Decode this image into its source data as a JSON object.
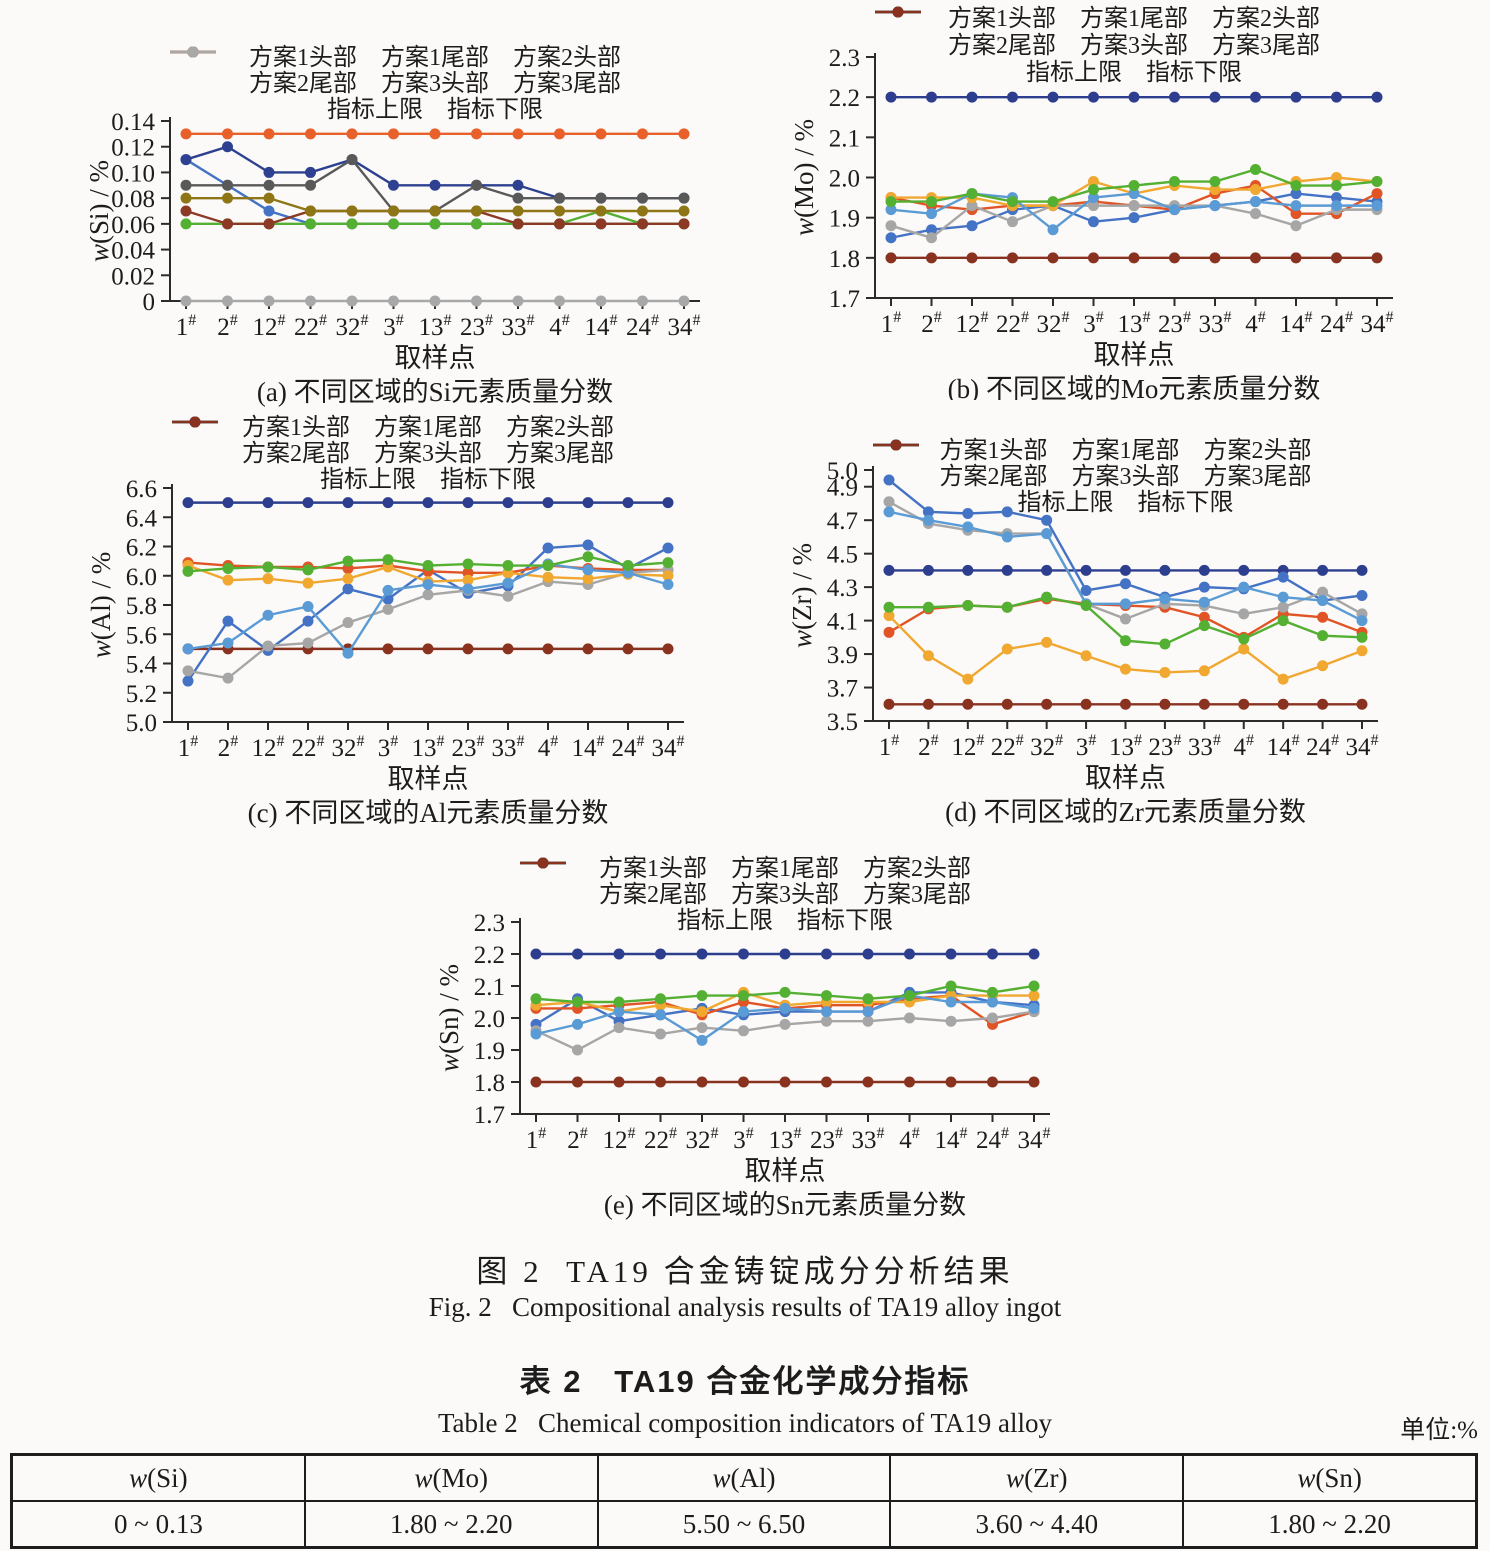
{
  "figure": {
    "caption_zh": "图 2  TA19 合金铸锭成分分析结果",
    "caption_en": "Fig. 2   Compositional analysis results of TA19 alloy ingot"
  },
  "table2": {
    "title_zh": "表 2   TA19 合金化学成分指标",
    "title_en": "Table 2   Chemical composition indicators of TA19 alloy",
    "unit": "单位:%",
    "columns": [
      {
        "symbol": "w",
        "element": "(Si)",
        "range": "0 ~ 0.13"
      },
      {
        "symbol": "w",
        "element": "(Mo)",
        "range": "1.80 ~ 2.20"
      },
      {
        "symbol": "w",
        "element": "(Al)",
        "range": "5.50 ~ 6.50"
      },
      {
        "symbol": "w",
        "element": "(Zr)",
        "range": "3.60 ~ 4.40"
      },
      {
        "symbol": "w",
        "element": "(Sn)",
        "range": "1.80 ~ 2.20"
      }
    ]
  },
  "chart_data": [
    {
      "id": "a",
      "type": "line",
      "title": "(a) 不同区域的Si元素质量分数",
      "xlabel": "取样点",
      "ylabel": "w(Si) / %",
      "ylim": [
        0,
        0.14
      ],
      "yticks": [
        "0",
        "0.02",
        "0.04",
        "0.06",
        "0.08",
        "0.10",
        "0.12",
        "0.14"
      ],
      "grid": false,
      "legend_position": "top",
      "categories": [
        "1#",
        "2#",
        "12#",
        "22#",
        "32#",
        "3#",
        "13#",
        "23#",
        "33#",
        "4#",
        "14#",
        "24#",
        "34#"
      ],
      "series": [
        {
          "name": "方案1头部",
          "color": "#4472c4",
          "values": [
            0.11,
            0.09,
            0.07,
            0.06,
            0.06,
            0.06,
            0.06,
            0.06,
            0.06,
            0.06,
            0.06,
            0.06,
            0.06
          ]
        },
        {
          "name": "方案1尾部",
          "color": "#54b032",
          "values": [
            0.06,
            0.06,
            0.06,
            0.06,
            0.06,
            0.06,
            0.06,
            0.06,
            0.06,
            0.06,
            0.07,
            0.06,
            0.06
          ]
        },
        {
          "name": "方案2头部",
          "color": "#2e4190",
          "values": [
            0.11,
            0.12,
            0.1,
            0.1,
            0.11,
            0.09,
            0.09,
            0.09,
            0.09,
            0.08,
            0.08,
            0.08,
            0.08
          ]
        },
        {
          "name": "方案2尾部",
          "color": "#8c3a26",
          "values": [
            0.07,
            0.06,
            0.06,
            0.07,
            0.07,
            0.07,
            0.07,
            0.07,
            0.06,
            0.06,
            0.06,
            0.06,
            0.06
          ]
        },
        {
          "name": "方案3头部",
          "color": "#595959",
          "values": [
            0.09,
            0.09,
            0.09,
            0.09,
            0.11,
            0.07,
            0.07,
            0.09,
            0.08,
            0.08,
            0.08,
            0.08,
            0.08
          ]
        },
        {
          "name": "方案3尾部",
          "color": "#8e7617",
          "values": [
            0.08,
            0.08,
            0.08,
            0.07,
            0.07,
            0.07,
            0.07,
            0.07,
            0.07,
            0.07,
            0.07,
            0.07,
            0.07
          ]
        },
        {
          "name": "指标上限",
          "color": "#e8612a",
          "values": [
            0.13,
            0.13,
            0.13,
            0.13,
            0.13,
            0.13,
            0.13,
            0.13,
            0.13,
            0.13,
            0.13,
            0.13,
            0.13
          ]
        },
        {
          "name": "指标下限",
          "color": "#a8a8a8",
          "values": [
            0,
            0,
            0,
            0,
            0,
            0,
            0,
            0,
            0,
            0,
            0,
            0,
            0
          ]
        }
      ]
    },
    {
      "id": "b",
      "type": "line",
      "title": "(b) 不同区域的Mo元素质量分数",
      "xlabel": "取样点",
      "ylabel": "w(Mo) / %",
      "ylim": [
        1.7,
        2.3
      ],
      "yticks": [
        "1.7",
        "1.8",
        "1.9",
        "2.0",
        "2.1",
        "2.2",
        "2.3"
      ],
      "grid": false,
      "legend_position": "top",
      "categories": [
        "1#",
        "2#",
        "12#",
        "22#",
        "32#",
        "3#",
        "13#",
        "23#",
        "33#",
        "4#",
        "14#",
        "24#",
        "34#"
      ],
      "series": [
        {
          "name": "方案1头部",
          "color": "#4472c4",
          "values": [
            1.85,
            1.87,
            1.88,
            1.92,
            1.93,
            1.89,
            1.9,
            1.92,
            1.93,
            1.94,
            1.96,
            1.95,
            1.94
          ]
        },
        {
          "name": "方案1尾部",
          "color": "#e05426",
          "values": [
            1.95,
            1.93,
            1.92,
            1.93,
            1.93,
            1.94,
            1.93,
            1.92,
            1.96,
            1.98,
            1.91,
            1.91,
            1.96
          ]
        },
        {
          "name": "方案2头部",
          "color": "#a6a6a6",
          "values": [
            1.88,
            1.85,
            1.93,
            1.89,
            1.93,
            1.93,
            1.93,
            1.93,
            1.93,
            1.91,
            1.88,
            1.92,
            1.92
          ]
        },
        {
          "name": "方案2尾部",
          "color": "#f0a830",
          "values": [
            1.95,
            1.95,
            1.95,
            1.93,
            1.93,
            1.99,
            1.96,
            1.98,
            1.97,
            1.97,
            1.99,
            2.0,
            1.99
          ]
        },
        {
          "name": "方案3头部",
          "color": "#5b9bd5",
          "values": [
            1.92,
            1.91,
            1.96,
            1.95,
            1.87,
            1.95,
            1.96,
            1.92,
            1.93,
            1.94,
            1.93,
            1.93,
            1.93
          ]
        },
        {
          "name": "方案3尾部",
          "color": "#54b032",
          "values": [
            1.94,
            1.94,
            1.96,
            1.94,
            1.94,
            1.97,
            1.98,
            1.99,
            1.99,
            2.02,
            1.98,
            1.98,
            1.99
          ]
        },
        {
          "name": "指标上限",
          "color": "#2d3e8e",
          "values": [
            2.2,
            2.2,
            2.2,
            2.2,
            2.2,
            2.2,
            2.2,
            2.2,
            2.2,
            2.2,
            2.2,
            2.2,
            2.2
          ]
        },
        {
          "name": "指标下限",
          "color": "#8a3220",
          "values": [
            1.8,
            1.8,
            1.8,
            1.8,
            1.8,
            1.8,
            1.8,
            1.8,
            1.8,
            1.8,
            1.8,
            1.8,
            1.8
          ]
        }
      ]
    },
    {
      "id": "c",
      "type": "line",
      "title": "(c) 不同区域的Al元素质量分数",
      "xlabel": "取样点",
      "ylabel": "w(Al) / %",
      "ylim": [
        5.0,
        6.6
      ],
      "yticks": [
        "5.0",
        "5.2",
        "5.4",
        "5.6",
        "5.8",
        "6.0",
        "6.2",
        "6.4",
        "6.6"
      ],
      "grid": false,
      "legend_position": "top",
      "categories": [
        "1#",
        "2#",
        "12#",
        "22#",
        "32#",
        "3#",
        "13#",
        "23#",
        "33#",
        "4#",
        "14#",
        "24#",
        "34#"
      ],
      "series": [
        {
          "name": "方案1头部",
          "color": "#4472c4",
          "values": [
            5.28,
            5.69,
            5.49,
            5.69,
            5.91,
            5.84,
            6.04,
            5.88,
            5.93,
            6.19,
            6.21,
            6.05,
            6.19
          ]
        },
        {
          "name": "方案1尾部",
          "color": "#e05426",
          "values": [
            6.09,
            6.07,
            6.06,
            6.06,
            6.05,
            6.07,
            6.03,
            6.02,
            6.02,
            6.07,
            6.05,
            6.04,
            6.04
          ]
        },
        {
          "name": "方案2头部",
          "color": "#a6a6a6",
          "values": [
            5.35,
            5.3,
            5.52,
            5.54,
            5.68,
            5.77,
            5.87,
            5.9,
            5.86,
            5.96,
            5.94,
            6.02,
            6.04
          ]
        },
        {
          "name": "方案2尾部",
          "color": "#f0a830",
          "values": [
            6.07,
            5.97,
            5.98,
            5.95,
            5.98,
            6.06,
            5.96,
            5.97,
            6.02,
            5.99,
            5.98,
            6.01,
            6.0
          ]
        },
        {
          "name": "方案3头部",
          "color": "#5b9bd5",
          "values": [
            5.5,
            5.54,
            5.73,
            5.79,
            5.47,
            5.9,
            5.94,
            5.91,
            5.95,
            6.08,
            6.04,
            6.02,
            5.94
          ]
        },
        {
          "name": "方案3尾部",
          "color": "#54b032",
          "values": [
            6.03,
            6.05,
            6.06,
            6.04,
            6.1,
            6.11,
            6.07,
            6.08,
            6.07,
            6.07,
            6.13,
            6.07,
            6.09
          ]
        },
        {
          "name": "指标上限",
          "color": "#2d3e8e",
          "values": [
            6.5,
            6.5,
            6.5,
            6.5,
            6.5,
            6.5,
            6.5,
            6.5,
            6.5,
            6.5,
            6.5,
            6.5,
            6.5
          ]
        },
        {
          "name": "指标下限",
          "color": "#8a3220",
          "values": [
            5.5,
            5.5,
            5.5,
            5.5,
            5.5,
            5.5,
            5.5,
            5.5,
            5.5,
            5.5,
            5.5,
            5.5,
            5.5
          ]
        }
      ]
    },
    {
      "id": "d",
      "type": "line",
      "title": "(d) 不同区域的Zr元素质量分数",
      "xlabel": "取样点",
      "ylabel": "w(Zr) / %",
      "ylim": [
        3.5,
        5.0
      ],
      "yticks": [
        "3.5",
        "3.7",
        "3.9",
        "4.1",
        "4.3",
        "4.5",
        "4.7",
        "4.9",
        "5.0"
      ],
      "grid": false,
      "legend_position": "top",
      "categories": [
        "1#",
        "2#",
        "12#",
        "22#",
        "32#",
        "3#",
        "13#",
        "23#",
        "33#",
        "4#",
        "14#",
        "24#",
        "34#"
      ],
      "series": [
        {
          "name": "方案1头部",
          "color": "#4472c4",
          "values": [
            4.94,
            4.75,
            4.74,
            4.75,
            4.7,
            4.28,
            4.32,
            4.24,
            4.3,
            4.29,
            4.36,
            4.22,
            4.25
          ]
        },
        {
          "name": "方案1尾部",
          "color": "#e05426",
          "values": [
            4.03,
            4.17,
            4.19,
            4.18,
            4.23,
            4.2,
            4.19,
            4.18,
            4.12,
            4.0,
            4.14,
            4.12,
            4.03
          ]
        },
        {
          "name": "方案2头部",
          "color": "#a6a6a6",
          "values": [
            4.81,
            4.68,
            4.64,
            4.62,
            4.62,
            4.2,
            4.11,
            4.2,
            4.19,
            4.14,
            4.18,
            4.27,
            4.14
          ]
        },
        {
          "name": "方案2尾部",
          "color": "#f0a830",
          "values": [
            4.13,
            3.89,
            3.75,
            3.93,
            3.97,
            3.89,
            3.81,
            3.79,
            3.8,
            3.93,
            3.75,
            3.83,
            3.92
          ]
        },
        {
          "name": "方案3头部",
          "color": "#5b9bd5",
          "values": [
            4.75,
            4.7,
            4.66,
            4.6,
            4.62,
            4.2,
            4.2,
            4.23,
            4.21,
            4.3,
            4.24,
            4.22,
            4.1
          ]
        },
        {
          "name": "方案3尾部",
          "color": "#54b032",
          "values": [
            4.18,
            4.18,
            4.19,
            4.18,
            4.24,
            4.19,
            3.98,
            3.96,
            4.07,
            3.99,
            4.1,
            4.01,
            4.0
          ]
        },
        {
          "name": "指标上限",
          "color": "#2d3e8e",
          "values": [
            4.4,
            4.4,
            4.4,
            4.4,
            4.4,
            4.4,
            4.4,
            4.4,
            4.4,
            4.4,
            4.4,
            4.4,
            4.4
          ]
        },
        {
          "name": "指标下限",
          "color": "#8a3220",
          "values": [
            3.6,
            3.6,
            3.6,
            3.6,
            3.6,
            3.6,
            3.6,
            3.6,
            3.6,
            3.6,
            3.6,
            3.6,
            3.6
          ]
        }
      ]
    },
    {
      "id": "e",
      "type": "line",
      "title": "(e) 不同区域的Sn元素质量分数",
      "xlabel": "取样点",
      "ylabel": "w(Sn) / %",
      "ylim": [
        1.7,
        2.3
      ],
      "yticks": [
        "1.7",
        "1.8",
        "1.9",
        "2.0",
        "2.1",
        "2.2",
        "2.3"
      ],
      "grid": false,
      "legend_position": "top",
      "categories": [
        "1#",
        "2#",
        "12#",
        "22#",
        "32#",
        "3#",
        "13#",
        "23#",
        "33#",
        "4#",
        "14#",
        "24#",
        "34#"
      ],
      "series": [
        {
          "name": "方案1头部",
          "color": "#4472c4",
          "values": [
            1.98,
            2.06,
            1.99,
            2.01,
            2.03,
            2.01,
            2.02,
            2.02,
            2.02,
            2.08,
            2.08,
            2.05,
            2.04
          ]
        },
        {
          "name": "方案1尾部",
          "color": "#e05426",
          "values": [
            2.03,
            2.03,
            2.04,
            2.05,
            2.01,
            2.05,
            2.03,
            2.04,
            2.04,
            2.06,
            2.07,
            1.98,
            2.02
          ]
        },
        {
          "name": "方案2头部",
          "color": "#a6a6a6",
          "values": [
            1.96,
            1.9,
            1.97,
            1.95,
            1.97,
            1.96,
            1.98,
            1.99,
            1.99,
            2.0,
            1.99,
            2.0,
            2.02
          ]
        },
        {
          "name": "方案2尾部",
          "color": "#f0a830",
          "values": [
            2.04,
            2.05,
            2.02,
            2.04,
            2.02,
            2.08,
            2.04,
            2.05,
            2.05,
            2.05,
            2.07,
            2.07,
            2.07
          ]
        },
        {
          "name": "方案3头部",
          "color": "#5b9bd5",
          "values": [
            1.95,
            1.98,
            2.02,
            2.01,
            1.93,
            2.02,
            2.03,
            2.02,
            2.02,
            2.07,
            2.05,
            2.05,
            2.03
          ]
        },
        {
          "name": "方案3尾部",
          "color": "#54b032",
          "values": [
            2.06,
            2.05,
            2.05,
            2.06,
            2.07,
            2.07,
            2.08,
            2.07,
            2.06,
            2.07,
            2.1,
            2.08,
            2.1
          ]
        },
        {
          "name": "指标上限",
          "color": "#2d3e8e",
          "values": [
            2.2,
            2.2,
            2.2,
            2.2,
            2.2,
            2.2,
            2.2,
            2.2,
            2.2,
            2.2,
            2.2,
            2.2,
            2.2
          ]
        },
        {
          "name": "指标下限",
          "color": "#8a3220",
          "values": [
            1.8,
            1.8,
            1.8,
            1.8,
            1.8,
            1.8,
            1.8,
            1.8,
            1.8,
            1.8,
            1.8,
            1.8,
            1.8
          ]
        }
      ]
    }
  ]
}
